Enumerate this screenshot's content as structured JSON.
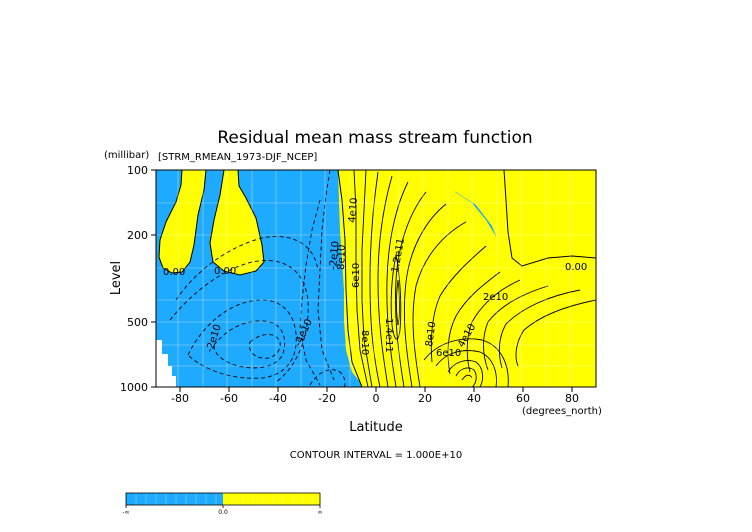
{
  "chart_data": {
    "type": "contour",
    "title": "Residual mean mass stream function",
    "subtitle": "[STRM_RMEAN_1973-DJF_NCEP]",
    "xlabel": "Latitude",
    "ylabel": "Level",
    "x_units": "(degrees_north)",
    "y_units": "(millibar)",
    "xlim": [
      -90,
      90
    ],
    "ylim": [
      1000,
      100
    ],
    "y_scale": "log",
    "x_ticks": [
      -80,
      -60,
      -40,
      -20,
      0,
      20,
      40,
      60,
      80
    ],
    "x_tick_labels": [
      "-80",
      "-60",
      "-40",
      "-20",
      "0",
      "20",
      "40",
      "60",
      "80"
    ],
    "y_ticks": [
      100,
      200,
      500,
      1000
    ],
    "y_tick_labels": [
      "100",
      "200",
      "500",
      "1000"
    ],
    "contour_interval_text": "CONTOUR INTERVAL = 1.000E+10",
    "contour_interval": 10000000000.0,
    "fill": {
      "negative": "#1eaaff",
      "positive": "#ffff00",
      "missing": "#ffffff"
    },
    "contour_labels": [
      {
        "text": "0.00",
        "lat": -77,
        "level": 300
      },
      {
        "text": "0.00",
        "lat": -61,
        "level": 280
      },
      {
        "text": "0.00",
        "lat": 80,
        "level": 270
      },
      {
        "text": "-2e10",
        "lat": -62,
        "level": 600
      },
      {
        "text": "-4e10",
        "lat": -32,
        "level": 550
      },
      {
        "text": "-2e10",
        "lat": -18,
        "level": 270
      },
      {
        "text": "4e10",
        "lat": -11,
        "level": 190
      },
      {
        "text": "8e10",
        "lat": -7,
        "level": 270
      },
      {
        "text": "6e10",
        "lat": -5,
        "level": 320
      },
      {
        "text": "1.2e11",
        "lat": 11,
        "level": 270
      },
      {
        "text": "1.4e11",
        "lat": 5,
        "level": 500
      },
      {
        "text": "8e10",
        "lat": -5,
        "level": 620
      },
      {
        "text": "8e10",
        "lat": 22,
        "level": 600
      },
      {
        "text": "2e10",
        "lat": 57,
        "level": 380
      },
      {
        "text": "4e10",
        "lat": 42,
        "level": 650
      },
      {
        "text": "6e10",
        "lat": 32,
        "level": 760
      }
    ]
  },
  "colorbar": {
    "labels": [
      "-∞",
      "0.0",
      "∞"
    ]
  }
}
